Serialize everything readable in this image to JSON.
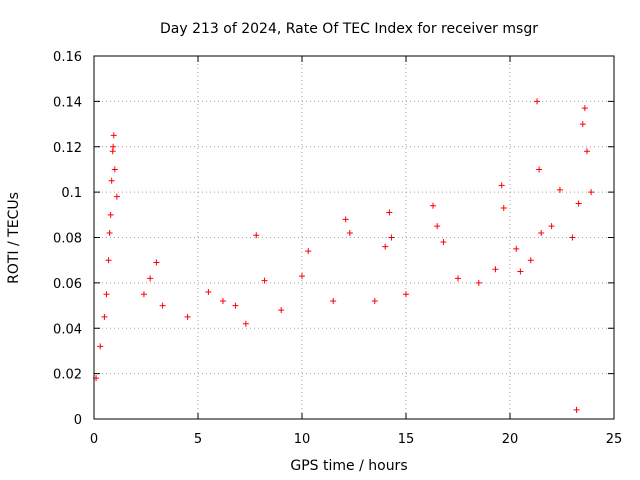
{
  "chart_data": {
    "type": "scatter",
    "title": "Day 213 of 2024, Rate Of TEC Index for receiver msgr",
    "xlabel": "GPS time / hours",
    "ylabel": "ROTI / TECUs",
    "xlim": [
      0,
      25
    ],
    "ylim": [
      0,
      0.16
    ],
    "xticks": [
      0,
      5,
      10,
      15,
      20,
      25
    ],
    "xtick_labels": [
      "0",
      "5",
      "10",
      "15",
      "20",
      "25"
    ],
    "yticks": [
      0,
      0.02,
      0.04,
      0.06,
      0.08,
      0.1,
      0.12,
      0.14,
      0.16
    ],
    "ytick_labels": [
      "0",
      "0.02",
      "0.04",
      "0.06",
      "0.08",
      "0.1",
      "0.12",
      "0.14",
      "0.16"
    ],
    "grid": true,
    "marker": "+",
    "color": "#ff0000",
    "series": [
      {
        "name": "ROTI",
        "points": [
          [
            0.1,
            0.018
          ],
          [
            0.3,
            0.032
          ],
          [
            0.5,
            0.045
          ],
          [
            0.6,
            0.055
          ],
          [
            0.7,
            0.07
          ],
          [
            0.75,
            0.082
          ],
          [
            0.8,
            0.09
          ],
          [
            0.85,
            0.105
          ],
          [
            0.9,
            0.118
          ],
          [
            0.92,
            0.12
          ],
          [
            0.95,
            0.125
          ],
          [
            1.0,
            0.11
          ],
          [
            1.1,
            0.098
          ],
          [
            2.4,
            0.055
          ],
          [
            2.7,
            0.062
          ],
          [
            3.0,
            0.069
          ],
          [
            3.3,
            0.05
          ],
          [
            4.5,
            0.045
          ],
          [
            5.5,
            0.056
          ],
          [
            6.2,
            0.052
          ],
          [
            6.8,
            0.05
          ],
          [
            7.3,
            0.042
          ],
          [
            7.8,
            0.081
          ],
          [
            8.2,
            0.061
          ],
          [
            9.0,
            0.048
          ],
          [
            10.0,
            0.063
          ],
          [
            10.3,
            0.074
          ],
          [
            11.5,
            0.052
          ],
          [
            12.1,
            0.088
          ],
          [
            12.3,
            0.082
          ],
          [
            13.5,
            0.052
          ],
          [
            14.0,
            0.076
          ],
          [
            14.2,
            0.091
          ],
          [
            14.3,
            0.08
          ],
          [
            15.0,
            0.055
          ],
          [
            16.3,
            0.094
          ],
          [
            16.5,
            0.085
          ],
          [
            16.8,
            0.078
          ],
          [
            17.5,
            0.062
          ],
          [
            18.5,
            0.06
          ],
          [
            19.3,
            0.066
          ],
          [
            19.6,
            0.103
          ],
          [
            19.7,
            0.093
          ],
          [
            20.3,
            0.075
          ],
          [
            20.5,
            0.065
          ],
          [
            21.0,
            0.07
          ],
          [
            21.3,
            0.14
          ],
          [
            21.4,
            0.11
          ],
          [
            21.5,
            0.082
          ],
          [
            22.0,
            0.085
          ],
          [
            22.4,
            0.101
          ],
          [
            23.0,
            0.08
          ],
          [
            23.3,
            0.095
          ],
          [
            23.5,
            0.13
          ],
          [
            23.6,
            0.137
          ],
          [
            23.7,
            0.118
          ],
          [
            23.9,
            0.1
          ],
          [
            23.2,
            0.004
          ]
        ]
      }
    ]
  }
}
